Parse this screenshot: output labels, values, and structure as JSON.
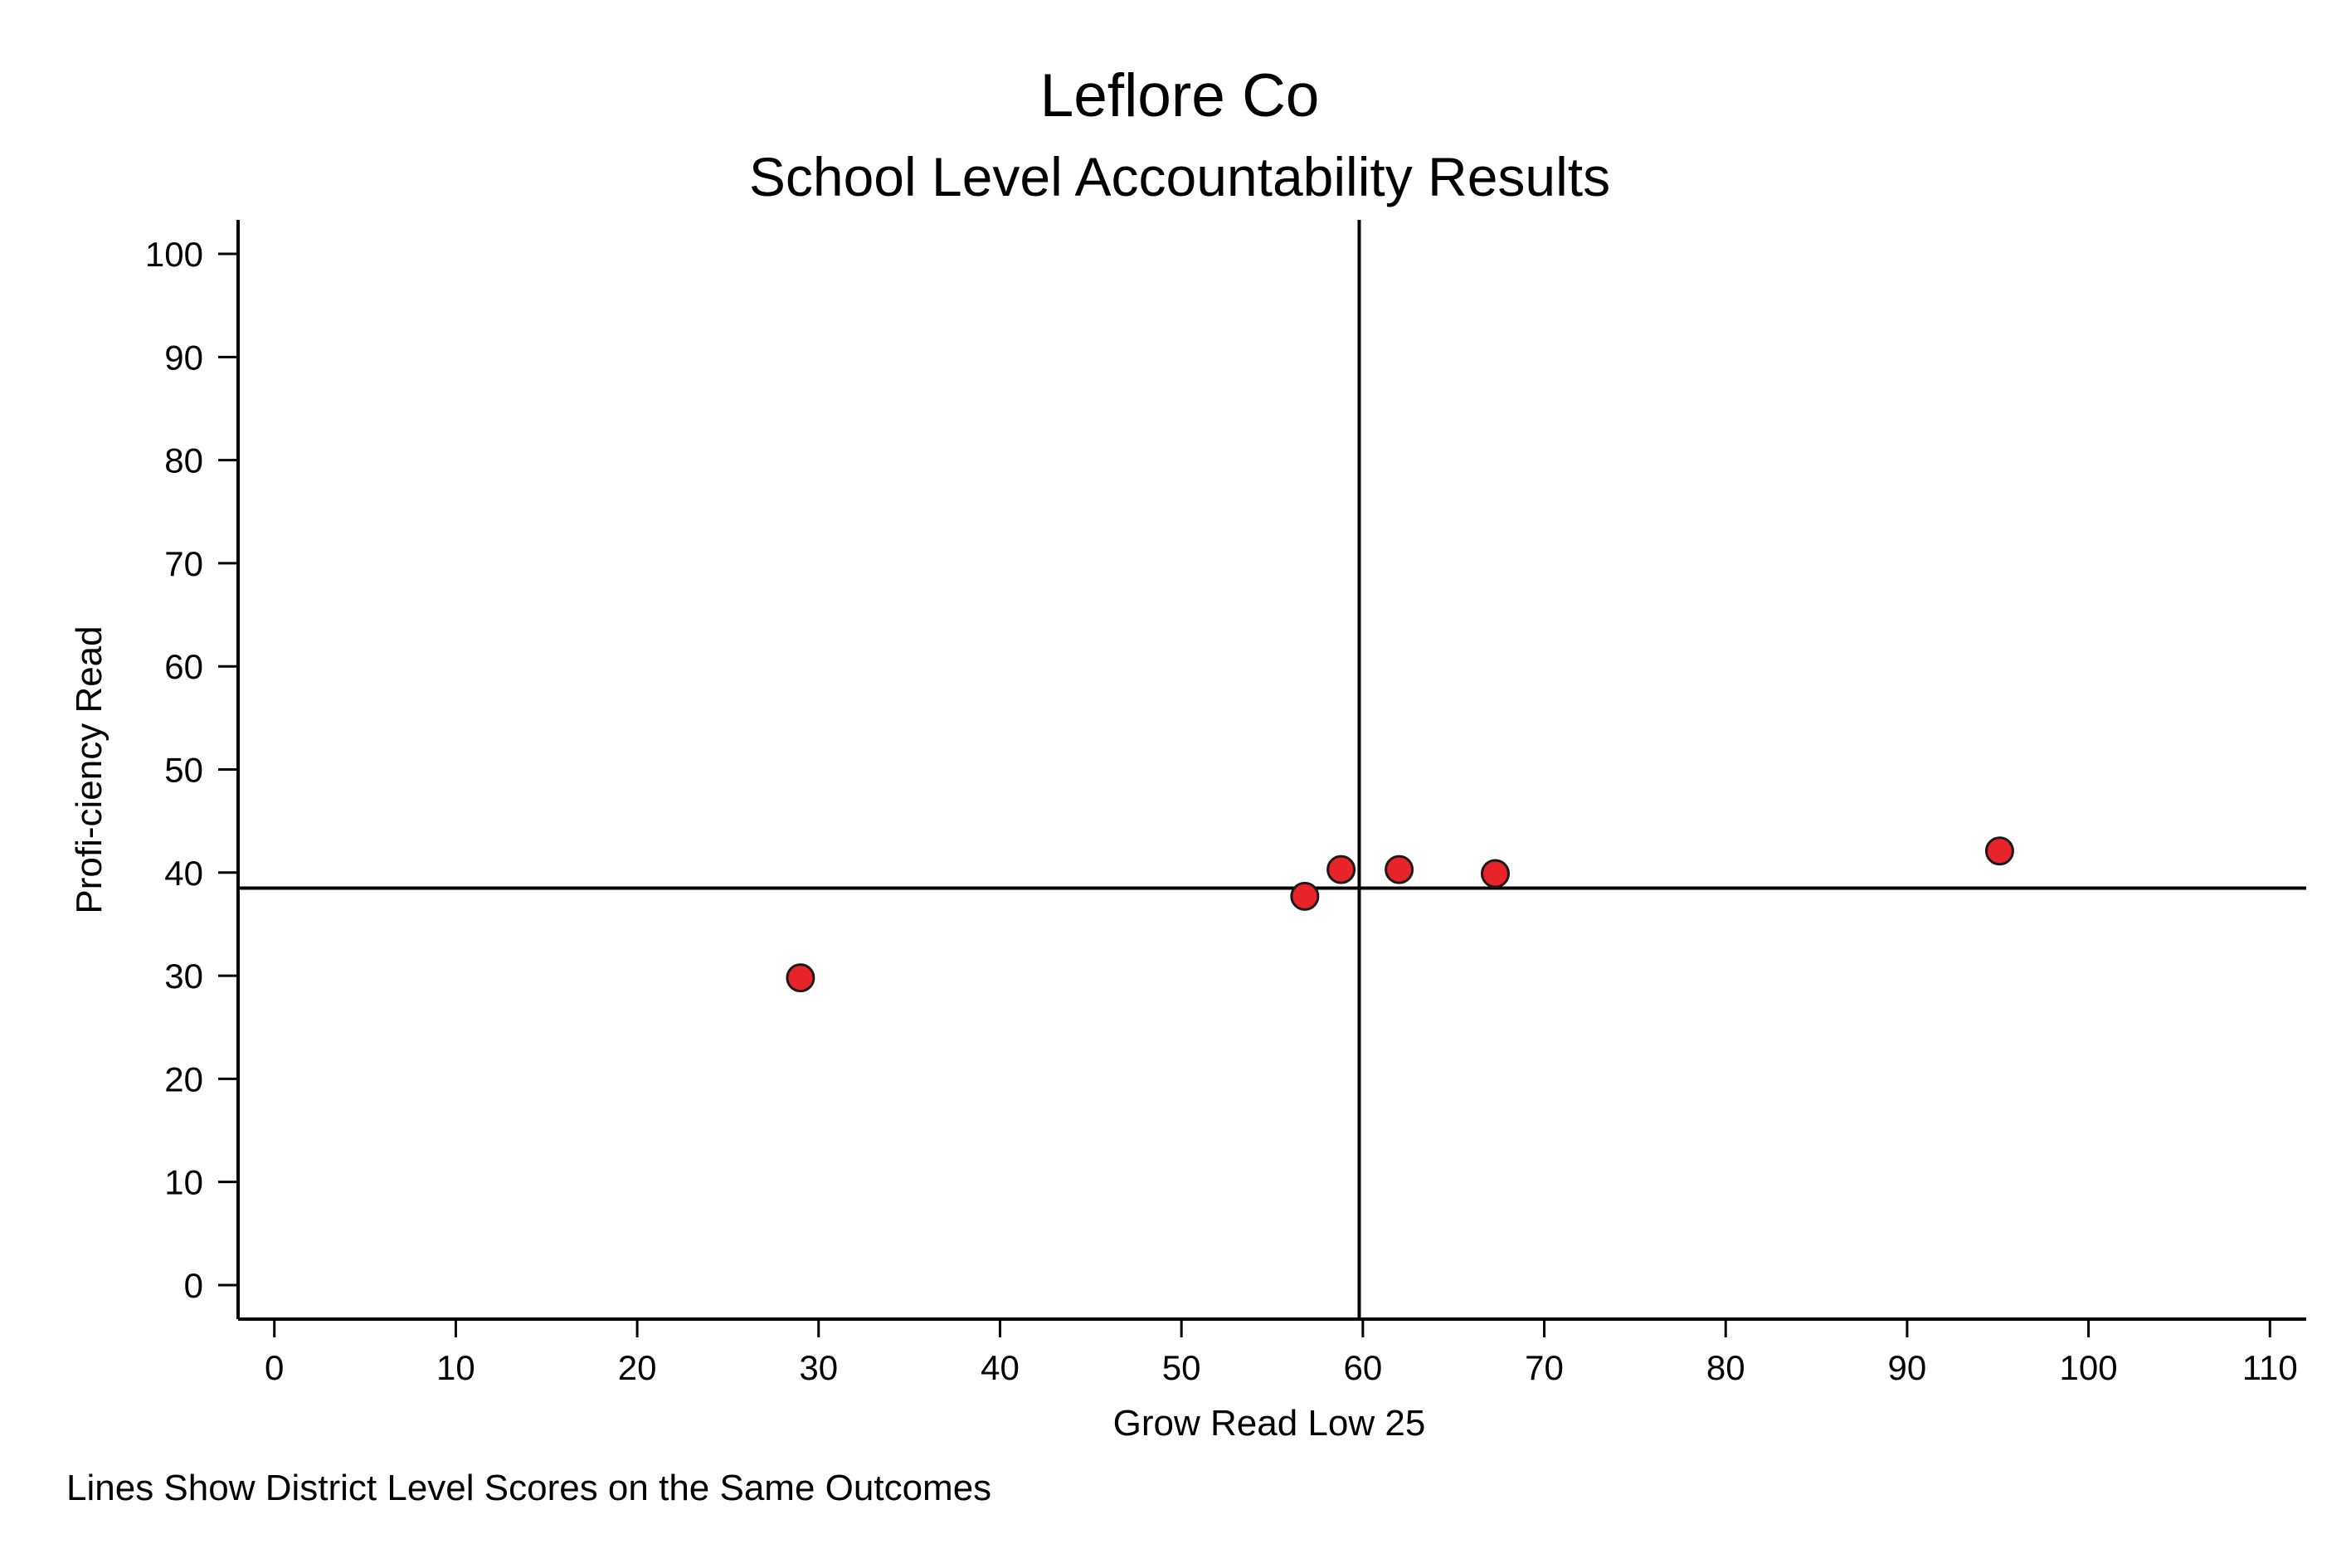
{
  "chart_data": {
    "type": "scatter",
    "title": "Leflore Co",
    "subtitle": "School Level Accountability Results",
    "xlabel": "Grow Read Low 25",
    "ylabel": "Profi-ciency Read",
    "note": "Lines Show District Level Scores on the Same Outcomes",
    "xlim": [
      -2,
      112
    ],
    "ylim": [
      -3.3,
      103.3
    ],
    "x_ticks": [
      0,
      10,
      20,
      30,
      40,
      50,
      60,
      70,
      80,
      90,
      100,
      110
    ],
    "y_ticks": [
      0,
      10,
      20,
      30,
      40,
      50,
      60,
      70,
      80,
      90,
      100
    ],
    "reference_lines": {
      "x": 59.8,
      "y": 38.5
    },
    "points": [
      {
        "x": 29.0,
        "y": 29.8
      },
      {
        "x": 56.8,
        "y": 37.7
      },
      {
        "x": 58.8,
        "y": 40.3
      },
      {
        "x": 62.0,
        "y": 40.3
      },
      {
        "x": 67.3,
        "y": 39.9
      },
      {
        "x": 95.1,
        "y": 42.1
      }
    ],
    "marker_color": "#e8232a",
    "marker_edge_color": "#1a1a1a",
    "grid": false,
    "legend": "none"
  }
}
